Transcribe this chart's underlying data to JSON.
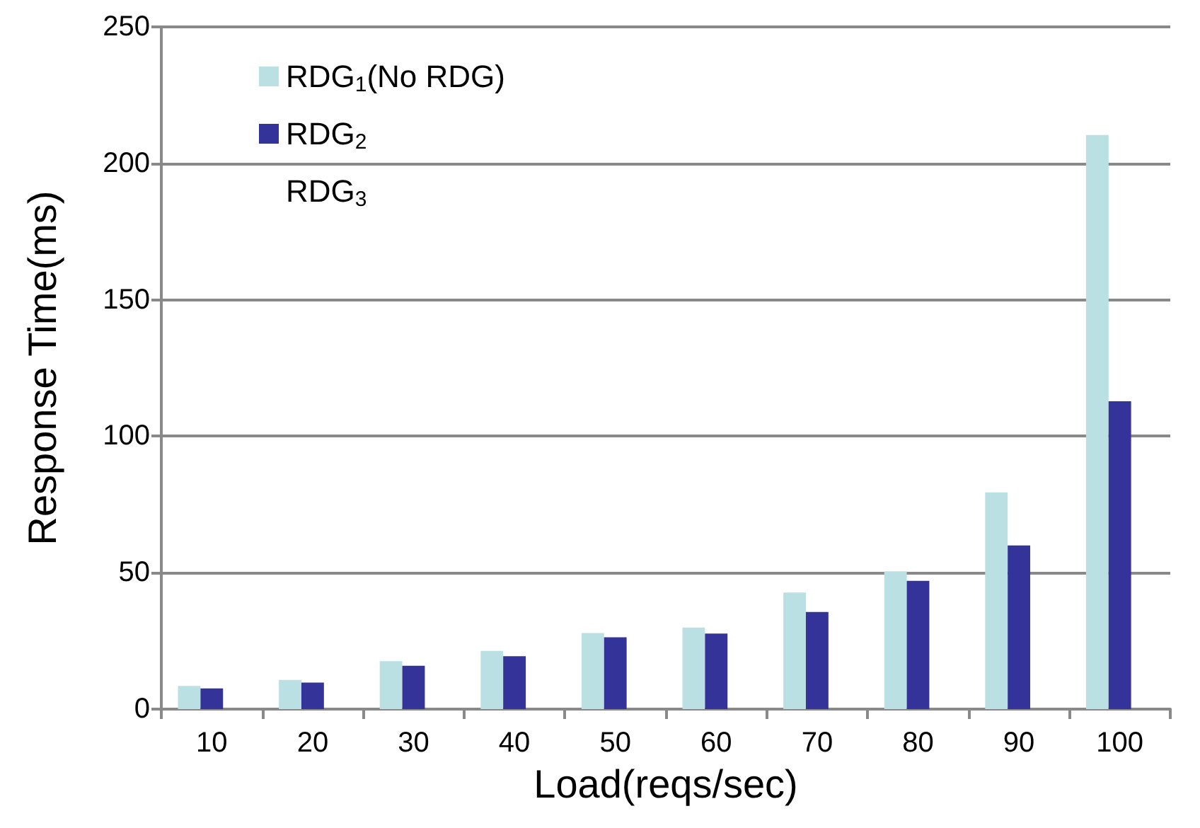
{
  "chart_data": {
    "type": "bar",
    "xlabel": "Load(reqs/sec)",
    "ylabel": "Response Time(ms)",
    "categories": [
      "10",
      "20",
      "30",
      "40",
      "50",
      "60",
      "70",
      "80",
      "90",
      "100"
    ],
    "series": [
      {
        "name": "RDG$_{1}$(No RDG)",
        "color": "#bbe0e3",
        "values": [
          8.5,
          10.7,
          17.6,
          21.3,
          27.9,
          29.9,
          42.7,
          50.5,
          79.4,
          210.4
        ]
      },
      {
        "name": "RDG$_{2}$",
        "color": "#333399",
        "values": [
          7.6,
          9.7,
          15.9,
          19.4,
          26.3,
          27.7,
          35.6,
          47,
          60,
          112.8
        ]
      },
      {
        "name": "RDG$_{3}$",
        "values": [
          null,
          null,
          null,
          null,
          null,
          null,
          null,
          null,
          null,
          null
        ]
      }
    ],
    "ylim": [
      0,
      250
    ],
    "yticks": [
      0,
      50,
      100,
      150,
      200,
      250
    ],
    "grid": "y",
    "legend": "top left"
  }
}
